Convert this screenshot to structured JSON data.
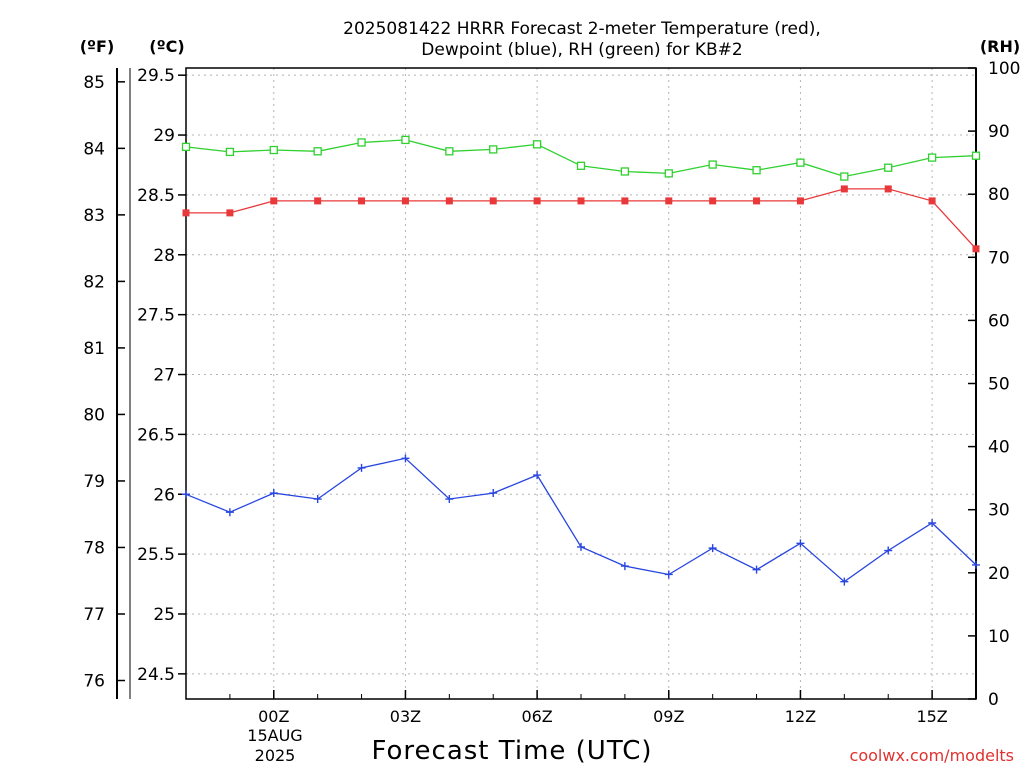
{
  "chart_data": {
    "type": "line",
    "title_line1": "2025081422 HRRR Forecast 2-meter Temperature (red),",
    "title_line2": "Dewpoint (blue), RH (green) for KB#2",
    "xlabel": "Forecast Time (UTC)",
    "x_date_lines": [
      "15AUG",
      "2025"
    ],
    "x_ticks": [
      "00Z",
      "03Z",
      "06Z",
      "09Z",
      "12Z",
      "15Z"
    ],
    "x_hours": [
      -2,
      -1,
      0,
      1,
      2,
      3,
      4,
      5,
      6,
      7,
      8,
      9,
      10,
      11,
      12,
      13,
      14,
      15,
      16
    ],
    "xlim_hours": [
      -2,
      16
    ],
    "left_f_axis": {
      "unit": "(ºF)",
      "ticks": [
        "76",
        "77",
        "78",
        "79",
        "80",
        "81",
        "82",
        "83",
        "84",
        "85"
      ]
    },
    "left_c_axis": {
      "unit": "(ºC)",
      "ylim": [
        24.29,
        29.56
      ],
      "ticks": [
        "24.5",
        "25",
        "25.5",
        "26",
        "26.5",
        "27",
        "27.5",
        "28",
        "28.5",
        "29",
        "29.5"
      ]
    },
    "right_axis": {
      "unit": "(RH)",
      "ylim": [
        0,
        100
      ],
      "ticks": [
        "0",
        "10",
        "20",
        "30",
        "40",
        "50",
        "60",
        "70",
        "80",
        "90",
        "100"
      ]
    },
    "grid": true,
    "series": [
      {
        "key": "temperature",
        "color": "#e8383a",
        "marker": "filled-square",
        "axis": "celsius",
        "values": [
          28.35,
          28.35,
          28.45,
          28.45,
          28.45,
          28.45,
          28.45,
          28.45,
          28.45,
          28.45,
          28.45,
          28.45,
          28.45,
          28.45,
          28.45,
          28.55,
          28.55,
          28.45,
          28.05
        ]
      },
      {
        "key": "dewpoint",
        "color": "#2846e0",
        "marker": "plus",
        "axis": "celsius",
        "values": [
          26.0,
          25.85,
          26.01,
          25.96,
          26.22,
          26.3,
          25.96,
          26.01,
          26.16,
          25.56,
          25.4,
          25.33,
          25.55,
          25.37,
          25.59,
          25.27,
          25.53,
          25.76,
          25.41
        ]
      },
      {
        "key": "rh",
        "color": "#2fd02f",
        "marker": "open-square",
        "axis": "rh",
        "values": [
          87.5,
          86.7,
          87.0,
          86.8,
          88.2,
          88.6,
          86.8,
          87.1,
          87.9,
          84.5,
          83.6,
          83.3,
          84.7,
          83.8,
          85.0,
          82.8,
          84.2,
          85.8,
          86.1
        ]
      }
    ]
  },
  "credit": "coolwx.com/modelts"
}
